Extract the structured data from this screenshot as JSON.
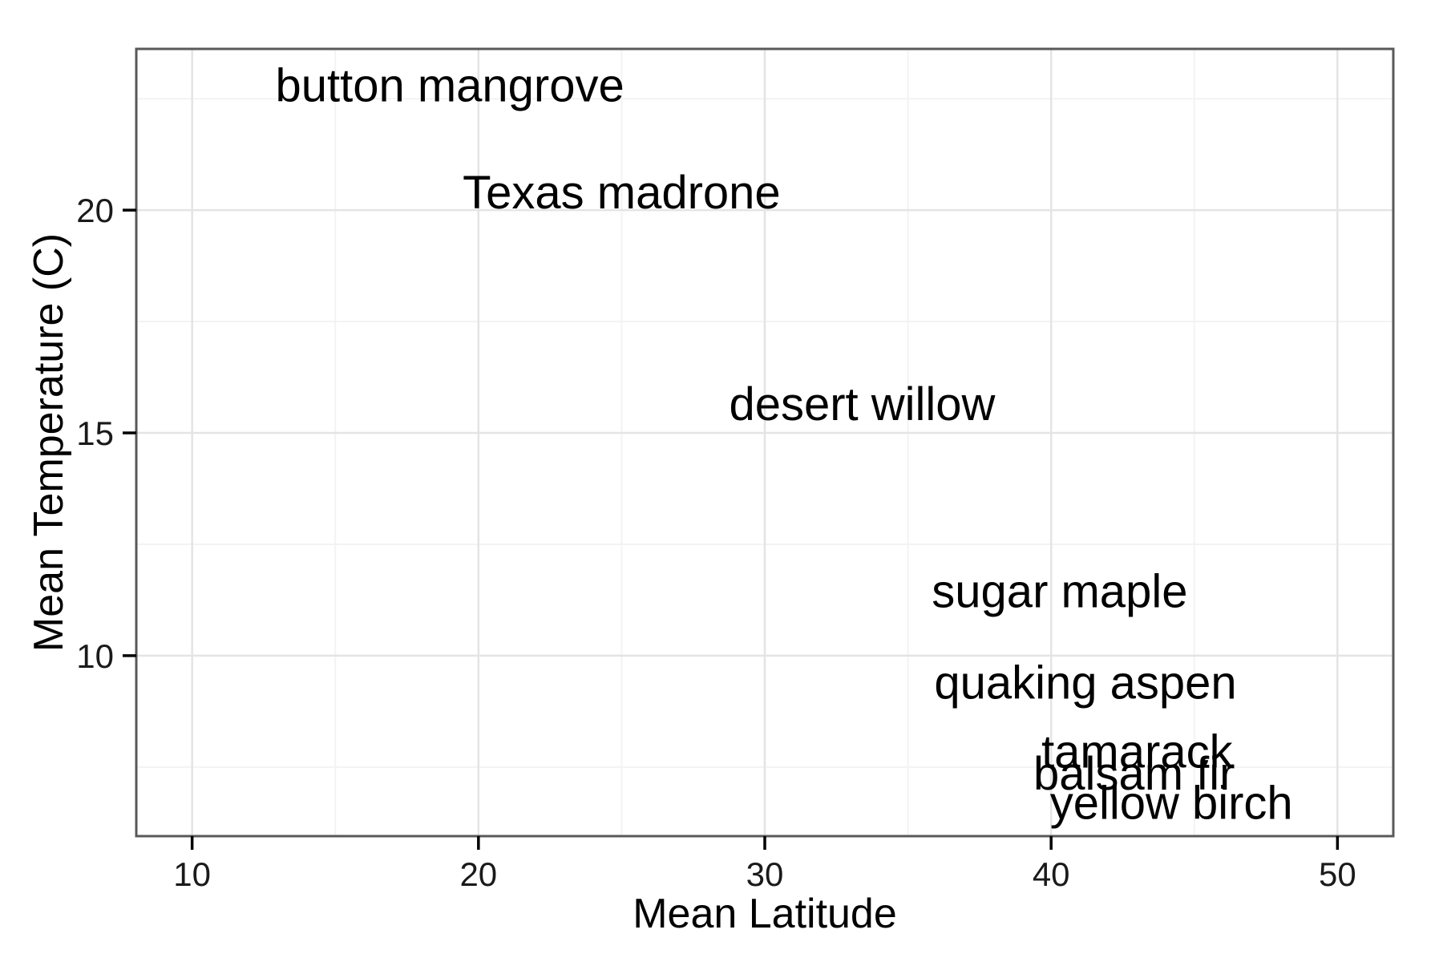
{
  "chart_data": {
    "type": "scatter",
    "title": "",
    "xlabel": "Mean Latitude",
    "ylabel": "Mean Temperature (C)",
    "xlim": [
      8.05,
      51.95
    ],
    "ylim": [
      5.95,
      23.62
    ],
    "x_ticks": [
      10,
      20,
      30,
      40,
      50
    ],
    "x_minor_ticks": [
      15,
      25,
      35,
      45
    ],
    "y_ticks": [
      10,
      15,
      20
    ],
    "y_minor_ticks": [
      7.5,
      12.5,
      17.5,
      22.5
    ],
    "grid": "on",
    "legend": "none",
    "marker": "text-label",
    "points": [
      {
        "label": "button mangrove",
        "x": 19.0,
        "y": 22.8
      },
      {
        "label": "Texas madrone",
        "x": 25.0,
        "y": 20.4
      },
      {
        "label": "desert willow",
        "x": 33.4,
        "y": 15.65
      },
      {
        "label": "sugar maple",
        "x": 40.3,
        "y": 11.45
      },
      {
        "label": "quaking aspen",
        "x": 41.2,
        "y": 9.4
      },
      {
        "label": "tamarack",
        "x": 43.0,
        "y": 7.85
      },
      {
        "label": "balsam fir",
        "x": 42.9,
        "y": 7.35
      },
      {
        "label": "yellow birch",
        "x": 44.2,
        "y": 6.7
      }
    ],
    "colors": {
      "panel_border": "#595959",
      "grid_major": "#e4e4e4",
      "grid_minor": "#f3f3f3",
      "tick_mark": "#000000",
      "text": "#000000"
    }
  }
}
